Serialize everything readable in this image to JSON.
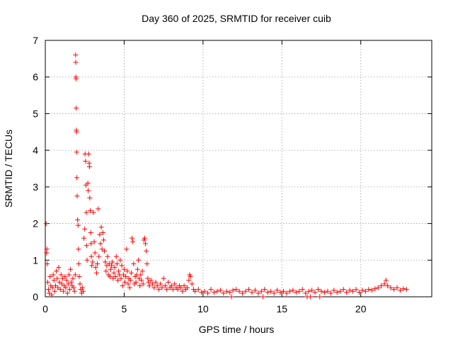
{
  "chart_data": {
    "type": "scatter",
    "title": "Day 360 of 2025, SRMTID for receiver cuib",
    "xlabel": "GPS time / hours",
    "ylabel": "SRMTID / TECUs",
    "xlim": [
      0,
      24.5
    ],
    "ylim": [
      0,
      7
    ],
    "xticks": [
      0,
      5,
      10,
      15,
      20
    ],
    "yticks": [
      0,
      1,
      2,
      3,
      4,
      5,
      6,
      7
    ],
    "grid": true,
    "marker": "+",
    "series": [
      {
        "name": "SRMTID",
        "color": "#ff0000",
        "points": [
          [
            0.05,
            2.0
          ],
          [
            0.08,
            1.2
          ],
          [
            0.1,
            1.3
          ],
          [
            0.12,
            0.9
          ],
          [
            0.15,
            0.4
          ],
          [
            0.2,
            0.2
          ],
          [
            0.25,
            0.1
          ],
          [
            0.3,
            0.55
          ],
          [
            0.35,
            0.3
          ],
          [
            0.4,
            0.05
          ],
          [
            0.45,
            0.25
          ],
          [
            0.5,
            0.6
          ],
          [
            0.55,
            0.45
          ],
          [
            0.6,
            0.15
          ],
          [
            0.65,
            0.3
          ],
          [
            0.7,
            0.7
          ],
          [
            0.75,
            0.5
          ],
          [
            0.8,
            0.25
          ],
          [
            0.85,
            0.8
          ],
          [
            0.9,
            0.4
          ],
          [
            0.95,
            0.2
          ],
          [
            1.0,
            0.6
          ],
          [
            1.05,
            0.35
          ],
          [
            1.1,
            0.5
          ],
          [
            1.15,
            0.15
          ],
          [
            1.2,
            0.3
          ],
          [
            1.25,
            0.55
          ],
          [
            1.3,
            0.25
          ],
          [
            1.35,
            0.45
          ],
          [
            1.4,
            0.1
          ],
          [
            1.45,
            0.35
          ],
          [
            1.5,
            0.6
          ],
          [
            1.55,
            0.2
          ],
          [
            1.6,
            0.75
          ],
          [
            1.65,
            0.4
          ],
          [
            1.7,
            0.3
          ],
          [
            1.75,
            0.5
          ],
          [
            1.8,
            0.25
          ],
          [
            1.85,
            0.15
          ],
          [
            1.9,
            0.6
          ],
          [
            1.92,
            6.6
          ],
          [
            1.93,
            6.4
          ],
          [
            1.94,
            6.0
          ],
          [
            1.95,
            5.95
          ],
          [
            1.96,
            5.15
          ],
          [
            1.97,
            4.55
          ],
          [
            1.98,
            4.5
          ],
          [
            1.99,
            3.95
          ],
          [
            2.0,
            3.25
          ],
          [
            2.02,
            2.75
          ],
          [
            2.05,
            2.1
          ],
          [
            2.08,
            1.95
          ],
          [
            2.1,
            1.3
          ],
          [
            2.12,
            0.9
          ],
          [
            2.15,
            0.55
          ],
          [
            2.2,
            0.35
          ],
          [
            2.25,
            0.2
          ],
          [
            2.3,
            0.1
          ],
          [
            2.35,
            0.25
          ],
          [
            2.4,
            0.15
          ],
          [
            2.45,
            1.6
          ],
          [
            2.5,
            1.85
          ],
          [
            2.52,
            3.9
          ],
          [
            2.55,
            3.7
          ],
          [
            2.58,
            3.05
          ],
          [
            2.6,
            2.3
          ],
          [
            2.62,
            1.4
          ],
          [
            2.65,
            1.0
          ],
          [
            2.7,
            3.1
          ],
          [
            2.72,
            2.9
          ],
          [
            2.75,
            3.9
          ],
          [
            2.78,
            3.65
          ],
          [
            2.8,
            3.55
          ],
          [
            2.82,
            2.7
          ],
          [
            2.85,
            2.35
          ],
          [
            2.88,
            1.75
          ],
          [
            2.9,
            1.45
          ],
          [
            2.92,
            1.1
          ],
          [
            2.95,
            0.85
          ],
          [
            3.0,
            0.95
          ],
          [
            3.05,
            2.3
          ],
          [
            3.1,
            1.5
          ],
          [
            3.15,
            1.2
          ],
          [
            3.2,
            0.8
          ],
          [
            3.25,
            0.65
          ],
          [
            3.3,
            0.9
          ],
          [
            3.35,
            2.4
          ],
          [
            3.4,
            1.1
          ],
          [
            3.45,
            1.7
          ],
          [
            3.5,
            1.45
          ],
          [
            3.55,
            1.9
          ],
          [
            3.6,
            1.3
          ],
          [
            3.65,
            1.75
          ],
          [
            3.7,
            1.55
          ],
          [
            3.75,
            1.25
          ],
          [
            3.8,
            0.95
          ],
          [
            3.85,
            0.7
          ],
          [
            3.9,
            0.85
          ],
          [
            3.95,
            1.1
          ],
          [
            4.0,
            0.6
          ],
          [
            4.05,
            0.9
          ],
          [
            4.1,
            0.55
          ],
          [
            4.15,
            0.75
          ],
          [
            4.2,
            0.85
          ],
          [
            4.25,
            0.95
          ],
          [
            4.3,
            0.5
          ],
          [
            4.35,
            0.65
          ],
          [
            4.4,
            0.8
          ],
          [
            4.45,
            0.55
          ],
          [
            4.5,
            1.1
          ],
          [
            4.55,
            0.9
          ],
          [
            4.6,
            0.45
          ],
          [
            4.65,
            0.7
          ],
          [
            4.7,
            0.6
          ],
          [
            4.75,
            1.0
          ],
          [
            4.8,
            0.5
          ],
          [
            4.85,
            0.85
          ],
          [
            4.9,
            0.3
          ],
          [
            4.95,
            0.6
          ],
          [
            5.0,
            0.75
          ],
          [
            5.05,
            0.4
          ],
          [
            5.1,
            0.55
          ],
          [
            5.15,
            1.3
          ],
          [
            5.2,
            0.7
          ],
          [
            5.25,
            0.35
          ],
          [
            5.3,
            0.5
          ],
          [
            5.35,
            0.25
          ],
          [
            5.4,
            0.45
          ],
          [
            5.45,
            0.65
          ],
          [
            5.5,
            1.6
          ],
          [
            5.55,
            1.5
          ],
          [
            5.6,
            0.9
          ],
          [
            5.65,
            0.35
          ],
          [
            5.7,
            0.55
          ],
          [
            5.75,
            0.4
          ],
          [
            5.8,
            0.6
          ],
          [
            5.85,
            0.75
          ],
          [
            5.9,
            1.0
          ],
          [
            5.95,
            0.5
          ],
          [
            6.0,
            0.3
          ],
          [
            6.05,
            0.6
          ],
          [
            6.1,
            0.45
          ],
          [
            6.15,
            0.7
          ],
          [
            6.2,
            0.35
          ],
          [
            6.25,
            1.55
          ],
          [
            6.3,
            1.6
          ],
          [
            6.35,
            1.45
          ],
          [
            6.4,
            1.25
          ],
          [
            6.45,
            0.9
          ],
          [
            6.5,
            0.5
          ],
          [
            6.55,
            0.4
          ],
          [
            6.6,
            0.3
          ],
          [
            6.7,
            0.45
          ],
          [
            6.8,
            0.35
          ],
          [
            6.9,
            0.25
          ],
          [
            7.0,
            0.4
          ],
          [
            7.1,
            0.3
          ],
          [
            7.2,
            0.2
          ],
          [
            7.3,
            0.35
          ],
          [
            7.4,
            0.25
          ],
          [
            7.5,
            0.5
          ],
          [
            7.6,
            0.3
          ],
          [
            7.7,
            0.2
          ],
          [
            7.8,
            0.4
          ],
          [
            7.9,
            0.25
          ],
          [
            8.0,
            0.3
          ],
          [
            8.1,
            0.2
          ],
          [
            8.2,
            0.35
          ],
          [
            8.3,
            0.25
          ],
          [
            8.4,
            0.2
          ],
          [
            8.5,
            0.3
          ],
          [
            8.6,
            0.25
          ],
          [
            8.7,
            0.15
          ],
          [
            8.8,
            0.3
          ],
          [
            8.9,
            0.2
          ],
          [
            9.0,
            0.25
          ],
          [
            9.1,
            0.45
          ],
          [
            9.15,
            0.6
          ],
          [
            9.2,
            0.55
          ],
          [
            9.3,
            0.35
          ],
          [
            9.4,
            0.2
          ],
          [
            9.5,
            0.15
          ],
          [
            9.7,
            0.2
          ],
          [
            9.9,
            0.12
          ],
          [
            10.1,
            0.15
          ],
          [
            10.3,
            0.1
          ],
          [
            10.5,
            0.2
          ],
          [
            10.7,
            0.12
          ],
          [
            10.9,
            0.15
          ],
          [
            11.1,
            0.18
          ],
          [
            11.3,
            0.1
          ],
          [
            11.5,
            0.15
          ],
          [
            11.7,
            0.12
          ],
          [
            11.8,
            0.0
          ],
          [
            11.9,
            0.18
          ],
          [
            12.1,
            0.2
          ],
          [
            12.3,
            0.15
          ],
          [
            12.5,
            0.1
          ],
          [
            12.7,
            0.15
          ],
          [
            12.9,
            0.2
          ],
          [
            13.1,
            0.12
          ],
          [
            13.3,
            0.18
          ],
          [
            13.5,
            0.1
          ],
          [
            13.7,
            0.15
          ],
          [
            13.8,
            0.0
          ],
          [
            13.9,
            0.2
          ],
          [
            14.1,
            0.12
          ],
          [
            14.3,
            0.15
          ],
          [
            14.5,
            0.1
          ],
          [
            14.7,
            0.18
          ],
          [
            14.9,
            0.12
          ],
          [
            15.1,
            0.15
          ],
          [
            15.3,
            0.1
          ],
          [
            15.5,
            0.15
          ],
          [
            15.7,
            0.18
          ],
          [
            15.9,
            0.12
          ],
          [
            16.1,
            0.15
          ],
          [
            16.3,
            0.2
          ],
          [
            16.5,
            0.1
          ],
          [
            16.6,
            0.0
          ],
          [
            16.7,
            0.15
          ],
          [
            16.8,
            0.0
          ],
          [
            16.9,
            0.18
          ],
          [
            17.1,
            0.12
          ],
          [
            17.3,
            0.2
          ],
          [
            17.4,
            0.0
          ],
          [
            17.5,
            0.15
          ],
          [
            17.7,
            0.12
          ],
          [
            17.9,
            0.15
          ],
          [
            18.1,
            0.1
          ],
          [
            18.3,
            0.18
          ],
          [
            18.5,
            0.12
          ],
          [
            18.7,
            0.15
          ],
          [
            18.9,
            0.2
          ],
          [
            19.1,
            0.12
          ],
          [
            19.3,
            0.18
          ],
          [
            19.5,
            0.15
          ],
          [
            19.7,
            0.2
          ],
          [
            19.9,
            0.12
          ],
          [
            20.1,
            0.18
          ],
          [
            20.3,
            0.15
          ],
          [
            20.5,
            0.2
          ],
          [
            20.7,
            0.18
          ],
          [
            20.9,
            0.22
          ],
          [
            21.1,
            0.25
          ],
          [
            21.3,
            0.3
          ],
          [
            21.5,
            0.35
          ],
          [
            21.6,
            0.45
          ],
          [
            21.7,
            0.3
          ],
          [
            21.9,
            0.25
          ],
          [
            22.1,
            0.2
          ],
          [
            22.3,
            0.25
          ],
          [
            22.5,
            0.18
          ],
          [
            22.7,
            0.22
          ],
          [
            22.9,
            0.2
          ]
        ]
      }
    ]
  }
}
